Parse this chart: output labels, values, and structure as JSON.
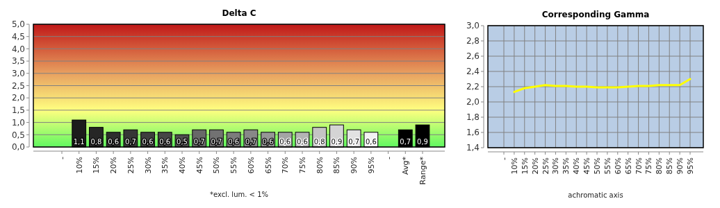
{
  "chart_data": [
    {
      "type": "bar",
      "title": "Delta C",
      "categories": [
        "-",
        "10%",
        "15%",
        "20%",
        "25%",
        "30%",
        "35%",
        "40%",
        "45%",
        "50%",
        "55%",
        "60%",
        "65%",
        "70%",
        "75%",
        "80%",
        "85%",
        "90%",
        "95%",
        "-",
        "Avg*",
        "Range*"
      ],
      "values": [
        null,
        1.1,
        0.8,
        0.6,
        0.7,
        0.6,
        0.6,
        0.5,
        0.7,
        0.7,
        0.6,
        0.7,
        0.6,
        0.6,
        0.6,
        0.8,
        0.9,
        0.7,
        0.6,
        null,
        0.7,
        0.9
      ],
      "colors": [
        null,
        "#1c1c1c",
        "#262626",
        "#2e2e2e",
        "#363636",
        "#3e3e3e",
        "#464646",
        "#4e4e4e",
        "#686868",
        "#727272",
        "#7c7c7c",
        "#888888",
        "#969696",
        "#a4a4a4",
        "#b4b4b4",
        "#c4c4c4",
        "#d4d4d4",
        "#e2e2e2",
        "#f2f2f2",
        null,
        "#000000",
        "#000000"
      ],
      "value_labels": [
        null,
        "1,1",
        "0,8",
        "0,6",
        "0,7",
        "0,6",
        "0,6",
        "0,5",
        "0,7",
        "0,7",
        "0,6",
        "0,7",
        "0,6",
        "0,6",
        "0,6",
        "0,8",
        "0,9",
        "0,7",
        "0,6",
        null,
        "0,7",
        "0,9"
      ],
      "ylim": [
        0,
        5
      ],
      "yticks": [
        {
          "value": 0,
          "label": "0,0"
        },
        {
          "value": 0.5,
          "label": "0,5"
        },
        {
          "value": 1,
          "label": "1,0"
        },
        {
          "value": 1.5,
          "label": "1,5"
        },
        {
          "value": 2,
          "label": "2,0"
        },
        {
          "value": 2.5,
          "label": "2,5"
        },
        {
          "value": 3,
          "label": "3,0"
        },
        {
          "value": 3.5,
          "label": "3,5"
        },
        {
          "value": 4,
          "label": "4,0"
        },
        {
          "value": 4.5,
          "label": "4,5"
        },
        {
          "value": 5,
          "label": "5,0"
        }
      ],
      "grid": "y",
      "annotations": [
        "*excl. lum. < 1%"
      ]
    },
    {
      "type": "line",
      "title": "Corresponding Gamma",
      "xlabel": "achromatic axis",
      "categories": [
        "-",
        "10%",
        "15%",
        "20%",
        "25%",
        "30%",
        "35%",
        "40%",
        "45%",
        "50%",
        "55%",
        "60%",
        "65%",
        "70%",
        "75%",
        "80%",
        "85%",
        "90%",
        "95%"
      ],
      "series": [
        {
          "color": "#ffff00",
          "values": [
            null,
            2.13,
            2.18,
            2.2,
            2.22,
            2.21,
            2.21,
            2.2,
            2.2,
            2.19,
            2.19,
            2.19,
            2.2,
            2.21,
            2.21,
            2.22,
            2.22,
            2.22,
            2.3
          ]
        }
      ],
      "ylim": [
        1.4,
        3.0
      ],
      "yticks": [
        {
          "value": 1.4,
          "label": "1,4"
        },
        {
          "value": 1.6,
          "label": "1,6"
        },
        {
          "value": 1.8,
          "label": "1,8"
        },
        {
          "value": 2,
          "label": "2,0"
        },
        {
          "value": 2.2,
          "label": "2,2"
        },
        {
          "value": 2.4,
          "label": "2,4"
        },
        {
          "value": 2.6,
          "label": "2,6"
        },
        {
          "value": 2.8,
          "label": "2,8"
        },
        {
          "value": 3,
          "label": "3,0"
        }
      ],
      "grid": true,
      "line_style": "solid"
    }
  ]
}
